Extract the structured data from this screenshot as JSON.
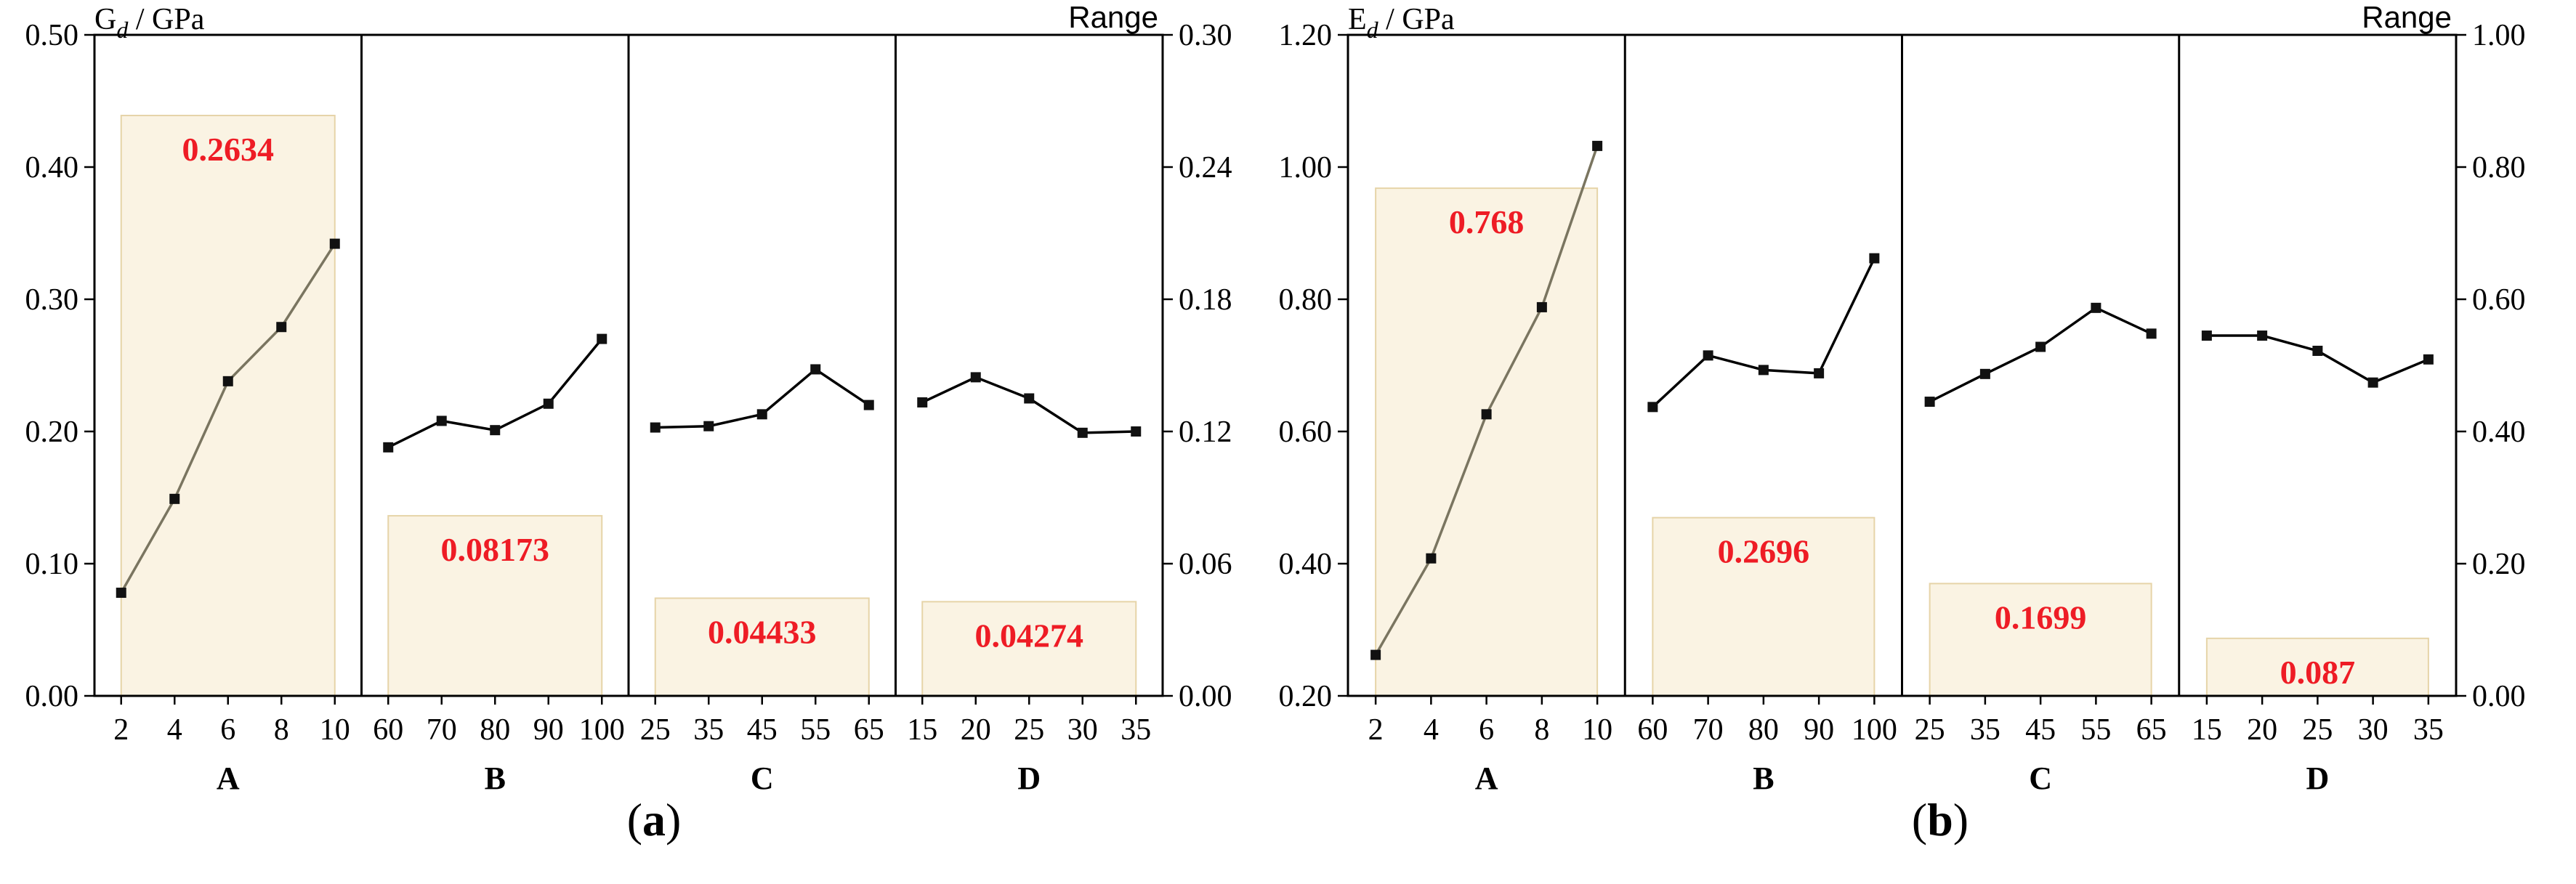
{
  "colors": {
    "bar_fill": "#faf3e3",
    "bar_stroke": "#e6d4a8",
    "range_label": "#ee1c25",
    "line_factor_a": "#7a7560",
    "line_other": "#000000",
    "axis": "#000000"
  },
  "chart_data": [
    {
      "type": "line",
      "panel": "(a)",
      "ylabel_main": "G",
      "ylabel_sub": "d",
      "ylabel_unit": " / GPa",
      "ylim": [
        0.0,
        0.5
      ],
      "yticks": [
        "0.00",
        "0.10",
        "0.20",
        "0.30",
        "0.40",
        "0.50"
      ],
      "y2label": "Range",
      "y2lim": [
        0.0,
        0.3
      ],
      "y2ticks": [
        "0.00",
        "0.06",
        "0.12",
        "0.18",
        "0.24",
        "0.30"
      ],
      "factors": [
        {
          "name": "A",
          "x": [
            "2",
            "4",
            "6",
            "8",
            "10"
          ],
          "y": [
            0.078,
            0.149,
            0.238,
            0.279,
            0.342
          ],
          "range": 0.2634,
          "range_label": "0.2634"
        },
        {
          "name": "B",
          "x": [
            "60",
            "70",
            "80",
            "90",
            "100"
          ],
          "y": [
            0.188,
            0.208,
            0.201,
            0.221,
            0.27
          ],
          "range": 0.08173,
          "range_label": "0.08173"
        },
        {
          "name": "C",
          "x": [
            "25",
            "35",
            "45",
            "55",
            "65"
          ],
          "y": [
            0.203,
            0.204,
            0.213,
            0.247,
            0.22
          ],
          "range": 0.04433,
          "range_label": "0.04433"
        },
        {
          "name": "D",
          "x": [
            "15",
            "20",
            "25",
            "30",
            "35"
          ],
          "y": [
            0.222,
            0.241,
            0.225,
            0.199,
            0.2
          ],
          "range": 0.04274,
          "range_label": "0.04274"
        }
      ]
    },
    {
      "type": "line",
      "panel": "(b)",
      "ylabel_main": "E",
      "ylabel_sub": "d",
      "ylabel_unit": " / GPa",
      "ylim": [
        0.2,
        1.2
      ],
      "yticks": [
        "0.20",
        "0.40",
        "0.60",
        "0.80",
        "1.00",
        "1.20"
      ],
      "y2label": "Range",
      "y2lim": [
        0.0,
        1.0
      ],
      "y2ticks": [
        "0.00",
        "0.20",
        "0.40",
        "0.60",
        "0.80",
        "1.00"
      ],
      "factors": [
        {
          "name": "A",
          "x": [
            "2",
            "4",
            "6",
            "8",
            "10"
          ],
          "y": [
            0.262,
            0.408,
            0.626,
            0.788,
            1.032
          ],
          "range": 0.768,
          "range_label": "0.768"
        },
        {
          "name": "B",
          "x": [
            "60",
            "70",
            "80",
            "90",
            "100"
          ],
          "y": [
            0.637,
            0.715,
            0.693,
            0.688,
            0.862
          ],
          "range": 0.2696,
          "range_label": "0.2696"
        },
        {
          "name": "C",
          "x": [
            "25",
            "35",
            "45",
            "55",
            "65"
          ],
          "y": [
            0.645,
            0.687,
            0.728,
            0.787,
            0.748
          ],
          "range": 0.1699,
          "range_label": "0.1699"
        },
        {
          "name": "D",
          "x": [
            "15",
            "20",
            "25",
            "30",
            "35"
          ],
          "y": [
            0.745,
            0.745,
            0.722,
            0.674,
            0.709
          ],
          "range": 0.087,
          "range_label": "0.087"
        }
      ]
    }
  ]
}
